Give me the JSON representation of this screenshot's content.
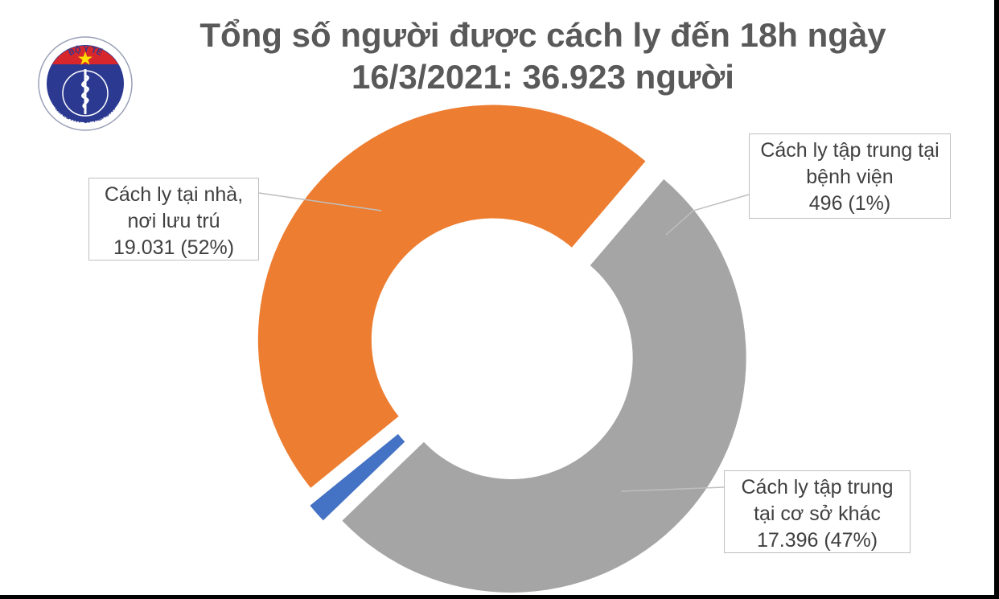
{
  "title": {
    "line1": "Tổng số người được cách ly đến 18h ngày",
    "line2": "16/3/2021: 36.923 người"
  },
  "logo": {
    "top_text": "BỘ Y TẾ",
    "bottom_text": "MINISTRY OF HEALTH",
    "colors": {
      "ring": "#2b3990",
      "flag": "#d7262c",
      "star": "#ffde00"
    }
  },
  "chart_data": {
    "type": "pie",
    "style": "donut",
    "total_text": "36.923 người",
    "slices": [
      {
        "name_lines": [
          "Cách ly tại nhà,",
          "nơi lưu trú"
        ],
        "value_text": "19.031 (52%)",
        "value": 19031,
        "percent": 52,
        "color": "#a5a5a5"
      },
      {
        "name_lines": [
          "Cách ly tập trung tại",
          "bệnh viện"
        ],
        "value_text": "496 (1%)",
        "value": 496,
        "percent": 1,
        "color": "#4472c4"
      },
      {
        "name_lines": [
          "Cách ly tập trung",
          "tại cơ sở khác"
        ],
        "value_text": "17.396 (47%)",
        "value": 17396,
        "percent": 47,
        "color": "#ed7d31"
      }
    ]
  }
}
